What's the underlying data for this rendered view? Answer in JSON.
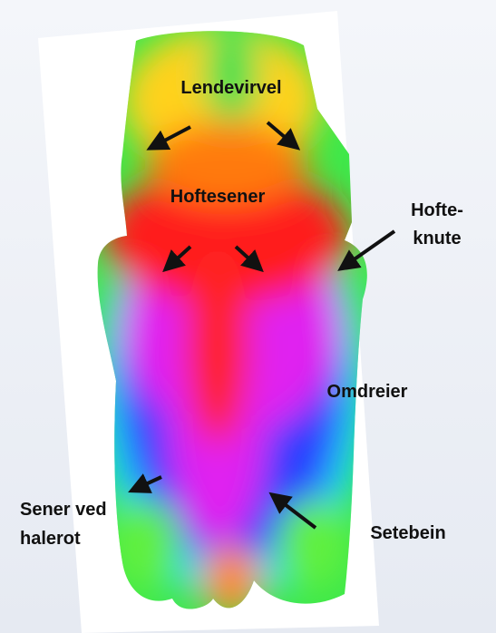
{
  "labels": [
    {
      "lines": [
        "Lendevirvel"
      ]
    },
    {
      "lines": [
        "Hoftesener"
      ]
    },
    {
      "lines": [
        "Hofte-",
        "knute"
      ]
    },
    {
      "lines": [
        "Omdreier"
      ]
    },
    {
      "lines": [
        "Sener ved",
        "halerot"
      ]
    },
    {
      "lines": [
        "Setebein"
      ]
    }
  ]
}
